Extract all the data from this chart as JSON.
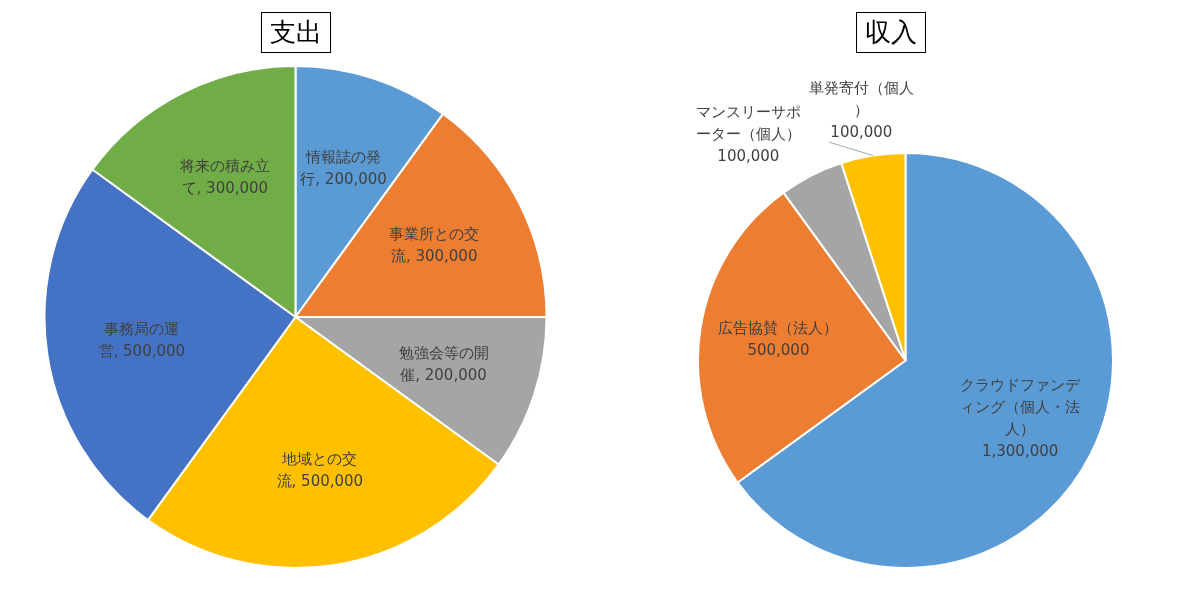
{
  "chart_data": [
    {
      "type": "pie",
      "title": "支出",
      "categories": [
        "情報誌の発行",
        "事業所との交流",
        "勉強会等の開催",
        "地域との交流",
        "事務局の運営",
        "将来の積み立て"
      ],
      "values": [
        200000,
        300000,
        200000,
        500000,
        500000,
        300000
      ],
      "value_labels": [
        "200,000",
        "300,000",
        "200,000",
        "500,000",
        "500,000",
        "300,000"
      ],
      "colors": [
        "#5b9bd5",
        "#ed7d31",
        "#a5a5a5",
        "#ffc000",
        "#4472c4",
        "#70ad47"
      ],
      "legend": false
    },
    {
      "type": "pie",
      "title": "収入",
      "categories": [
        "クラウドファンディング（個人・法人）",
        "広告協賛（法人）",
        "マンスリーサポーター（個人）",
        "単発寄付（個人）"
      ],
      "values": [
        1300000,
        500000,
        100000,
        100000
      ],
      "value_labels": [
        "1,300,000",
        "500,000",
        "100,000",
        "100,000"
      ],
      "colors": [
        "#5b9bd5",
        "#ed7d31",
        "#a5a5a5",
        "#ffc000"
      ],
      "legend": false
    }
  ]
}
